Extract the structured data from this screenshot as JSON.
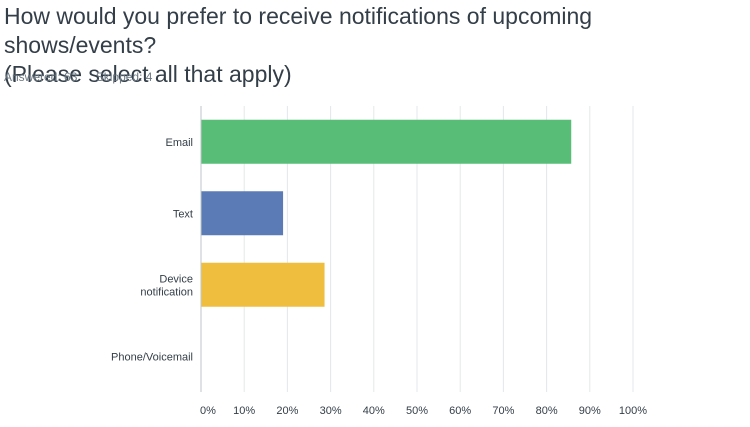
{
  "question": {
    "title_line1": "How would you prefer to receive notifications of upcoming shows/events?",
    "title_line2": "(Please select all that apply)"
  },
  "stats": {
    "answered": "Answered: 63",
    "skipped": "Skipped: 4"
  },
  "chart_data": {
    "type": "bar",
    "orientation": "horizontal",
    "categories": [
      [
        "Email"
      ],
      [
        "Text"
      ],
      [
        "Device",
        "notification"
      ],
      [
        "Phone/Voicemail"
      ]
    ],
    "values": [
      85.7,
      19.0,
      28.6,
      0.0
    ],
    "colors": [
      "#57bd77",
      "#5a7bb5",
      "#f0be3f",
      "#d86a6a"
    ],
    "xlim": [
      0,
      100
    ],
    "x_ticks": [
      "0%",
      "10%",
      "20%",
      "30%",
      "40%",
      "50%",
      "60%",
      "70%",
      "80%",
      "90%",
      "100%"
    ],
    "grid": true
  }
}
